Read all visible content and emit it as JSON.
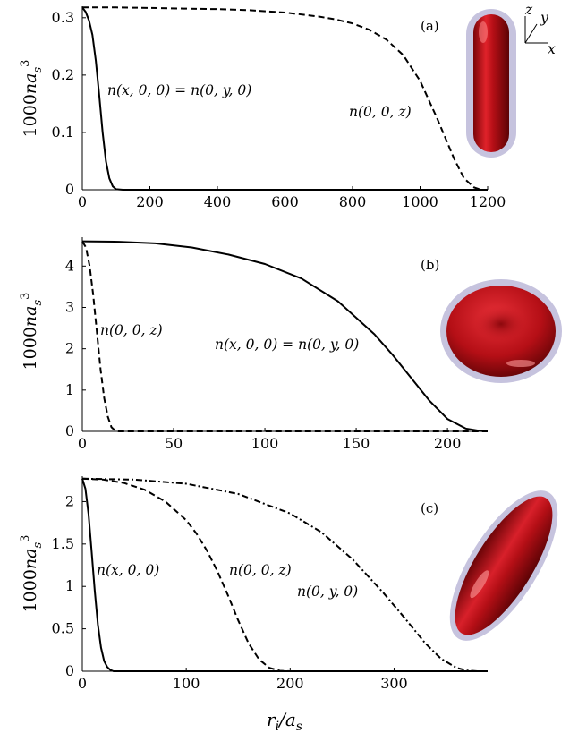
{
  "figure": {
    "xlabel": "r_i/a_s",
    "ylabel": "1000na_s^3"
  },
  "colors": {
    "body": "#b50f16",
    "halo": "#c6c3de",
    "line": "#000000"
  },
  "chart_data": [
    {
      "type": "line",
      "panel_label": "(a)",
      "xlim": [
        0,
        1200
      ],
      "ylim": [
        0,
        0.32
      ],
      "xticks": [
        "0",
        "200",
        "400",
        "600",
        "800",
        "1000",
        "1200"
      ],
      "yticks": [
        "0",
        "0.1",
        "0.2",
        "0.3"
      ],
      "inset": "vertical-cigar",
      "series": [
        {
          "name": "n(x, 0, 0) = n(0, y, 0)",
          "style": "solid",
          "x": [
            0,
            10,
            20,
            30,
            40,
            50,
            60,
            70,
            80,
            90,
            100,
            120,
            1200
          ],
          "y": [
            0.318,
            0.31,
            0.295,
            0.27,
            0.225,
            0.165,
            0.1,
            0.05,
            0.02,
            0.006,
            0.001,
            0,
            0
          ]
        },
        {
          "name": "n(0, 0, z)",
          "style": "dashed",
          "x": [
            0,
            100,
            200,
            300,
            400,
            500,
            600,
            700,
            750,
            800,
            850,
            900,
            950,
            1000,
            1050,
            1100,
            1130,
            1160,
            1180
          ],
          "y": [
            0.318,
            0.318,
            0.317,
            0.316,
            0.315,
            0.313,
            0.309,
            0.302,
            0.297,
            0.29,
            0.279,
            0.262,
            0.235,
            0.19,
            0.125,
            0.055,
            0.02,
            0.004,
            0
          ]
        }
      ]
    },
    {
      "type": "line",
      "panel_label": "(b)",
      "xlim": [
        0,
        222
      ],
      "ylim": [
        0,
        4.7
      ],
      "xticks": [
        "0",
        "50",
        "100",
        "150",
        "200"
      ],
      "yticks": [
        "0",
        "1",
        "2",
        "3",
        "4"
      ],
      "inset": "flat-disc",
      "series": [
        {
          "name": "n(0, 0, z)",
          "style": "dashed",
          "x": [
            0,
            2,
            4,
            6,
            8,
            10,
            12,
            14,
            16,
            18,
            20,
            222
          ],
          "y": [
            4.6,
            4.45,
            4.0,
            3.3,
            2.4,
            1.5,
            0.8,
            0.35,
            0.1,
            0.02,
            0,
            0
          ]
        },
        {
          "name": "n(x, 0, 0) = n(0, y, 0)",
          "style": "solid",
          "x": [
            0,
            20,
            40,
            60,
            80,
            100,
            120,
            140,
            160,
            170,
            180,
            190,
            200,
            210,
            218,
            222
          ],
          "y": [
            4.6,
            4.59,
            4.55,
            4.45,
            4.28,
            4.05,
            3.7,
            3.15,
            2.35,
            1.85,
            1.3,
            0.75,
            0.3,
            0.07,
            0.01,
            0
          ]
        }
      ]
    },
    {
      "type": "line",
      "panel_label": "(c)",
      "xlim": [
        0,
        390
      ],
      "ylim": [
        0,
        2.3
      ],
      "xticks": [
        "0",
        "100",
        "200",
        "300"
      ],
      "yticks": [
        "0",
        "0.5",
        "1",
        "1.5",
        "2"
      ],
      "inset": "tilted-ellipsoid",
      "series": [
        {
          "name": "n(x, 0, 0)",
          "style": "solid",
          "x": [
            0,
            3,
            6,
            9,
            12,
            15,
            18,
            21,
            24,
            27,
            30,
            40,
            390
          ],
          "y": [
            2.27,
            2.15,
            1.85,
            1.4,
            0.95,
            0.55,
            0.28,
            0.12,
            0.05,
            0.015,
            0,
            0,
            0
          ]
        },
        {
          "name": "n(0, 0, z)",
          "style": "dashed",
          "x": [
            0,
            20,
            40,
            60,
            80,
            100,
            110,
            120,
            130,
            140,
            150,
            160,
            170,
            180,
            190,
            200,
            390
          ],
          "y": [
            2.27,
            2.26,
            2.22,
            2.14,
            2.0,
            1.78,
            1.62,
            1.42,
            1.18,
            0.9,
            0.6,
            0.33,
            0.14,
            0.04,
            0.005,
            0,
            0
          ]
        },
        {
          "name": "n(0, y, 0)",
          "style": "dashdot",
          "x": [
            0,
            50,
            100,
            150,
            200,
            230,
            260,
            290,
            310,
            330,
            345,
            360,
            370,
            380,
            385
          ],
          "y": [
            2.27,
            2.26,
            2.21,
            2.09,
            1.86,
            1.64,
            1.32,
            0.92,
            0.63,
            0.33,
            0.15,
            0.04,
            0.01,
            0,
            0
          ]
        }
      ]
    }
  ],
  "annotations": {
    "a_solid": "n(x, 0, 0) = n(0, y, 0)",
    "a_dashed": "n(0, 0, z)",
    "b_dashed": "n(0, 0, z)",
    "b_solid": "n(x, 0, 0) = n(0, y, 0)",
    "c_solid": "n(x, 0, 0)",
    "c_dashed": "n(0, 0, z)",
    "c_dashdot": "n(0, y, 0)"
  },
  "axes_triad": {
    "z": "z",
    "y": "y",
    "x": "x"
  }
}
